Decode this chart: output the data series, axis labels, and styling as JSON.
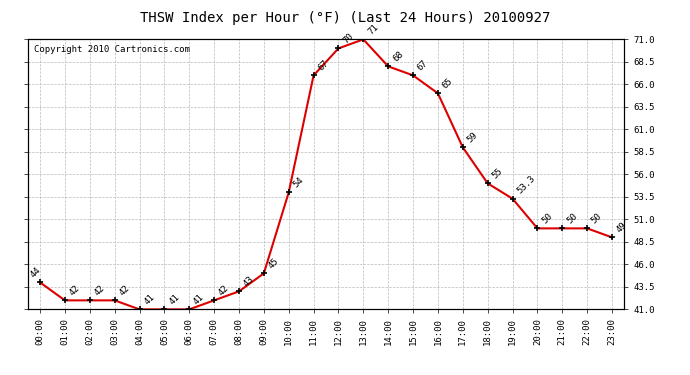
{
  "title": "THSW Index per Hour (°F) (Last 24 Hours) 20100927",
  "copyright": "Copyright 2010 Cartronics.com",
  "hours": [
    "00:00",
    "01:00",
    "02:00",
    "03:00",
    "04:00",
    "05:00",
    "06:00",
    "07:00",
    "08:00",
    "09:00",
    "10:00",
    "11:00",
    "12:00",
    "13:00",
    "14:00",
    "15:00",
    "16:00",
    "17:00",
    "18:00",
    "19:00",
    "20:00",
    "21:00",
    "22:00",
    "23:00"
  ],
  "values": [
    44,
    42,
    42,
    42,
    41,
    41,
    41,
    42,
    43,
    45,
    54,
    67,
    70,
    71,
    68,
    67,
    65,
    59,
    55,
    53.3,
    50,
    50,
    50,
    49
  ],
  "line_color": "#dd0000",
  "marker_color": "#dd0000",
  "bg_color": "#ffffff",
  "grid_color": "#bbbbbb",
  "ylim_min": 41.0,
  "ylim_max": 71.0,
  "yticks": [
    41.0,
    43.5,
    46.0,
    48.5,
    51.0,
    53.5,
    56.0,
    58.5,
    61.0,
    63.5,
    66.0,
    68.5,
    71.0
  ],
  "ytick_labels": [
    "41.0",
    "43.5",
    "46.0",
    "48.5",
    "51.0",
    "53.5",
    "56.0",
    "58.5",
    "61.0",
    "63.5",
    "66.0",
    "68.5",
    "71.0"
  ],
  "title_fontsize": 10,
  "copyright_fontsize": 6.5,
  "label_fontsize": 6.5,
  "annot_fontsize": 6.5
}
